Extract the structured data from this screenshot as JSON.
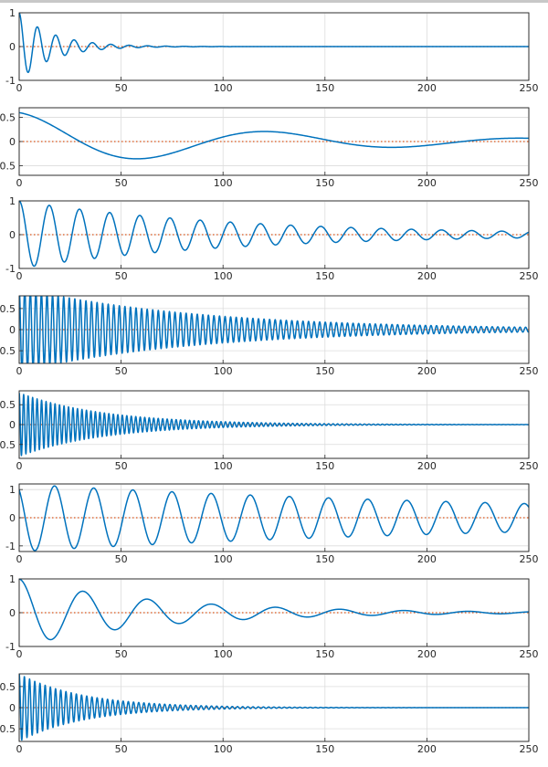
{
  "colors": {
    "series": "#0072bd",
    "zero_line": "#d95319",
    "grid": "#dcdcdc",
    "axes": "#262626"
  },
  "chart_data": [
    {
      "type": "line",
      "xlim": [
        0,
        250
      ],
      "ylim": [
        -1,
        1
      ],
      "xticks": [
        0,
        50,
        100,
        150,
        200,
        250
      ],
      "yticks": [
        -1,
        0,
        1
      ],
      "xtick_labels": [
        "0",
        "50",
        "100",
        "150",
        "200",
        "250"
      ],
      "ytick_labels": [
        "-1",
        "0",
        "1"
      ],
      "grid": true,
      "reference_line_y": 0,
      "series": [
        {
          "amplitude": 1.0,
          "decay_per_unit": 0.06,
          "period": 9,
          "phase": 0,
          "samples_step": 0.25
        }
      ]
    },
    {
      "type": "line",
      "xlim": [
        0,
        250
      ],
      "ylim": [
        -0.7,
        0.7
      ],
      "xticks": [
        0,
        50,
        100,
        150,
        200,
        250
      ],
      "yticks": [
        -0.5,
        0,
        0.5
      ],
      "xtick_labels": [
        "0",
        "50",
        "100",
        "150",
        "200",
        "250"
      ],
      "ytick_labels": [
        "0.5",
        "0",
        "0.5"
      ],
      "grid": true,
      "reference_line_y": 0,
      "series": [
        {
          "amplitude": 0.6,
          "decay_per_unit": 0.0087,
          "period": 125,
          "phase": 0.07,
          "samples_step": 0.5
        }
      ]
    },
    {
      "type": "line",
      "xlim": [
        0,
        250
      ],
      "ylim": [
        -1,
        1
      ],
      "xticks": [
        0,
        50,
        100,
        150,
        200,
        250
      ],
      "yticks": [
        -1,
        0,
        1
      ],
      "xtick_labels": [
        "0",
        "50",
        "100",
        "150",
        "200",
        "250"
      ],
      "ytick_labels": [
        "-1",
        "0",
        "1"
      ],
      "grid": true,
      "reference_line_y": 0,
      "series": [
        {
          "amplitude": 1.0,
          "decay_per_unit": 0.0095,
          "period": 14.8,
          "phase": 0,
          "samples_step": 0.25
        }
      ]
    },
    {
      "type": "line",
      "xlim": [
        0,
        250
      ],
      "ylim": [
        -0.8,
        0.8
      ],
      "xticks": [
        0,
        50,
        100,
        150,
        200,
        250
      ],
      "yticks": [
        -0.5,
        0,
        0.5
      ],
      "xtick_labels": [
        "0",
        "50",
        "100",
        "150",
        "200",
        "250"
      ],
      "ytick_labels": [
        "0.5",
        "0",
        "0.5"
      ],
      "grid": true,
      "reference_line_y": 0,
      "series": [
        {
          "amplitude": 1.0,
          "decay_per_unit": 0.0115,
          "period": 2.73,
          "phase": 0,
          "samples_step": 0.1
        }
      ]
    },
    {
      "type": "line",
      "xlim": [
        0,
        250
      ],
      "ylim": [
        -0.85,
        0.85
      ],
      "xticks": [
        0,
        50,
        100,
        150,
        200,
        250
      ],
      "yticks": [
        -0.5,
        0,
        0.5
      ],
      "xtick_labels": [
        "0",
        "50",
        "100",
        "150",
        "200",
        "250"
      ],
      "ytick_labels": [
        "0.5",
        "0",
        "0.5"
      ],
      "grid": true,
      "reference_line_y": 0,
      "series": [
        {
          "amplitude": 0.8,
          "decay_per_unit": 0.024,
          "period": 2.2,
          "phase": 0,
          "samples_step": 0.1
        }
      ]
    },
    {
      "type": "line",
      "xlim": [
        0,
        250
      ],
      "ylim": [
        -1.2,
        1.2
      ],
      "xticks": [
        0,
        50,
        100,
        150,
        200,
        250
      ],
      "yticks": [
        -1,
        0,
        1
      ],
      "xtick_labels": [
        "0",
        "50",
        "100",
        "150",
        "200",
        "250"
      ],
      "ytick_labels": [
        "-1",
        "0",
        "1"
      ],
      "grid": true,
      "reference_line_y": 0,
      "series": [
        {
          "amplitude": 1.2,
          "decay_per_unit": 0.0035,
          "period": 19.2,
          "phase": 0.6,
          "samples_step": 0.25
        }
      ]
    },
    {
      "type": "line",
      "xlim": [
        0,
        250
      ],
      "ylim": [
        -1,
        1
      ],
      "xticks": [
        0,
        50,
        100,
        150,
        200,
        250
      ],
      "yticks": [
        -1,
        0,
        1
      ],
      "xtick_labels": [
        "0",
        "50",
        "100",
        "150",
        "200",
        "250"
      ],
      "ytick_labels": [
        "-1",
        "0",
        "1"
      ],
      "grid": true,
      "reference_line_y": 0,
      "series": [
        {
          "amplitude": 1.0,
          "decay_per_unit": 0.0145,
          "period": 31.5,
          "phase": 0,
          "samples_step": 0.25
        }
      ]
    },
    {
      "type": "line",
      "xlim": [
        0,
        250
      ],
      "ylim": [
        -0.8,
        0.8
      ],
      "xticks": [
        0,
        50,
        100,
        150,
        200,
        250
      ],
      "yticks": [
        -0.5,
        0,
        0.5
      ],
      "xtick_labels": [
        "0",
        "50",
        "100",
        "150",
        "200",
        "250"
      ],
      "ytick_labels": [
        "0.5",
        "0",
        "0.5"
      ],
      "grid": true,
      "reference_line_y": 0,
      "series": [
        {
          "amplitude": 0.8,
          "decay_per_unit": 0.032,
          "period": 2.55,
          "phase": 0,
          "samples_step": 0.1
        }
      ]
    }
  ]
}
